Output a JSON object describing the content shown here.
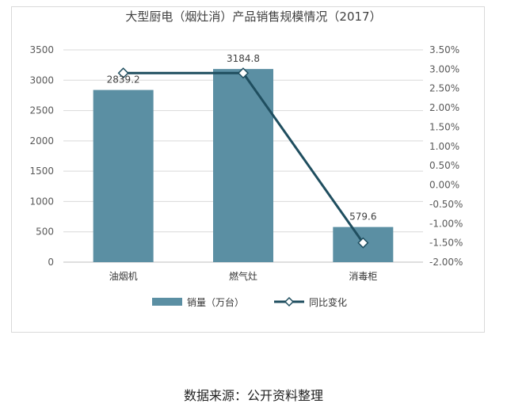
{
  "chart_data": {
    "type": "bar",
    "title": "大型厨电（烟灶消）产品销售规模情况（2017）",
    "categories": [
      "油烟机",
      "燃气灶",
      "消毒柜"
    ],
    "series": [
      {
        "name": "销量（万台）",
        "kind": "bar",
        "axis": "left",
        "values": [
          2839.2,
          3184.8,
          579.6
        ],
        "data_labels": [
          "2839.2",
          "3184.8",
          "579.6"
        ],
        "color": "#5b8fa3"
      },
      {
        "name": "同比变化",
        "kind": "line",
        "axis": "right",
        "values": [
          2.9,
          2.9,
          -1.5
        ],
        "color": "#1f4e5f",
        "marker": "diamond"
      }
    ],
    "y_left": {
      "lim": [
        0,
        3500
      ],
      "ticks": [
        "0",
        "500",
        "1000",
        "1500",
        "2000",
        "2500",
        "3000",
        "3500"
      ]
    },
    "y_right": {
      "lim": [
        -2.0,
        3.5
      ],
      "ticks": [
        "-2.00%",
        "-1.50%",
        "-1.00%",
        "-0.50%",
        "0.00%",
        "0.50%",
        "1.00%",
        "1.50%",
        "2.00%",
        "2.50%",
        "3.00%",
        "3.50%"
      ]
    },
    "grid": true,
    "legend": "bottom"
  },
  "source_note": "数据来源：公开资料整理"
}
